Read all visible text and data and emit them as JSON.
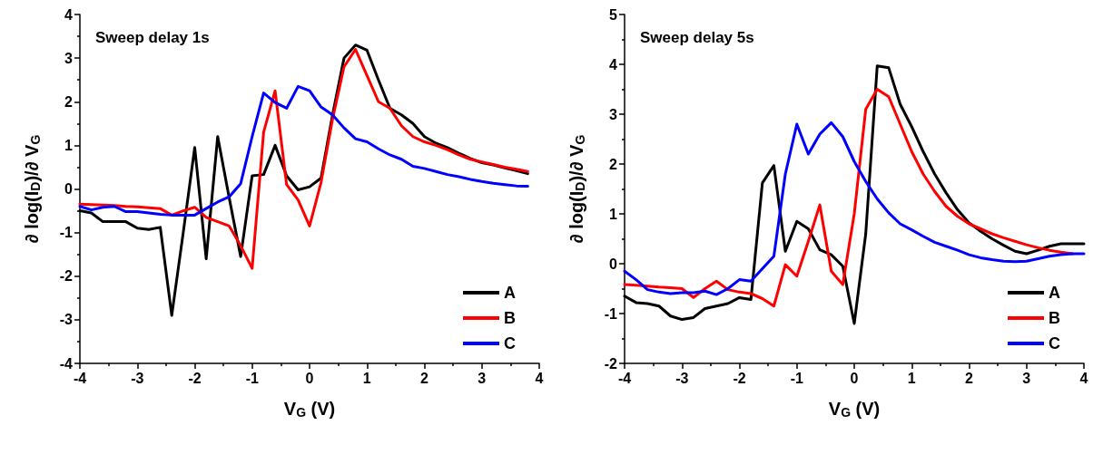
{
  "chart_data": [
    {
      "type": "line",
      "title": "Sweep delay 1s",
      "xlabel": "V$_{G}$ (V)",
      "ylabel": "∂ log(I$_{D}$)/∂ V$_{G}$",
      "x": [
        -4,
        -3.8,
        -3.6,
        -3.4,
        -3.2,
        -3,
        -2.8,
        -2.6,
        -2.4,
        -2.2,
        -2,
        -1.8,
        -1.6,
        -1.4,
        -1.2,
        -1,
        -0.8,
        -0.6,
        -0.4,
        -0.2,
        0,
        0.2,
        0.4,
        0.6,
        0.8,
        1,
        1.2,
        1.4,
        1.6,
        1.8,
        2,
        2.2,
        2.4,
        2.6,
        2.8,
        3,
        3.2,
        3.4,
        3.6,
        3.8
      ],
      "series": [
        {
          "name": "A",
          "color": "#000000",
          "values": [
            -0.5,
            -0.55,
            -0.75,
            -0.75,
            -0.75,
            -0.9,
            -0.93,
            -0.88,
            -2.9,
            -1.0,
            0.95,
            -1.6,
            1.2,
            -0.2,
            -1.55,
            0.3,
            0.33,
            1.0,
            0.3,
            -0.02,
            0.05,
            0.25,
            1.7,
            3.0,
            3.3,
            3.18,
            2.5,
            1.85,
            1.7,
            1.5,
            1.2,
            1.05,
            0.95,
            0.82,
            0.7,
            0.6,
            0.55,
            0.48,
            0.42,
            0.35
          ]
        },
        {
          "name": "B",
          "color": "#ff0000",
          "values": [
            -0.35,
            -0.36,
            -0.37,
            -0.38,
            -0.4,
            -0.41,
            -0.43,
            -0.45,
            -0.6,
            -0.5,
            -0.42,
            -0.65,
            -0.75,
            -0.85,
            -1.3,
            -1.82,
            1.3,
            2.25,
            0.1,
            -0.25,
            -0.85,
            0.15,
            1.6,
            2.8,
            3.2,
            2.6,
            2.0,
            1.85,
            1.45,
            1.2,
            1.08,
            1.0,
            0.9,
            0.78,
            0.68,
            0.62,
            0.56,
            0.5,
            0.45,
            0.4
          ]
        },
        {
          "name": "C",
          "color": "#0000ff",
          "values": [
            -0.4,
            -0.48,
            -0.42,
            -0.4,
            -0.52,
            -0.52,
            -0.55,
            -0.58,
            -0.6,
            -0.6,
            -0.6,
            -0.45,
            -0.3,
            -0.18,
            0.12,
            1.2,
            2.2,
            1.98,
            1.85,
            2.35,
            2.25,
            1.88,
            1.7,
            1.4,
            1.15,
            1.08,
            0.92,
            0.78,
            0.68,
            0.52,
            0.47,
            0.4,
            0.33,
            0.28,
            0.22,
            0.17,
            0.13,
            0.1,
            0.07,
            0.06
          ]
        }
      ],
      "xlim": [
        -4,
        4
      ],
      "xticks": [
        -4,
        -3,
        -2,
        -1,
        0,
        1,
        2,
        3,
        4
      ],
      "ylim": [
        -4,
        4
      ],
      "yticks": [
        -4,
        -3,
        -2,
        -1,
        0,
        1,
        2,
        3,
        4
      ],
      "legend": "bottom right"
    },
    {
      "type": "line",
      "title": "Sweep delay 5s",
      "xlabel": "V$_{G}$ (V)",
      "ylabel": "∂ log(I$_{D}$)/∂ V$_{G}$",
      "x": [
        -4,
        -3.8,
        -3.6,
        -3.4,
        -3.2,
        -3,
        -2.8,
        -2.6,
        -2.4,
        -2.2,
        -2,
        -1.8,
        -1.6,
        -1.4,
        -1.2,
        -1,
        -0.8,
        -0.6,
        -0.4,
        -0.2,
        0,
        0.2,
        0.4,
        0.6,
        0.8,
        1,
        1.2,
        1.4,
        1.6,
        1.8,
        2,
        2.2,
        2.4,
        2.6,
        2.8,
        3,
        3.2,
        3.4,
        3.6,
        3.8,
        4
      ],
      "series": [
        {
          "name": "A",
          "color": "#000000",
          "values": [
            -0.65,
            -0.78,
            -0.8,
            -0.85,
            -1.05,
            -1.12,
            -1.08,
            -0.9,
            -0.85,
            -0.8,
            -0.68,
            -0.72,
            1.62,
            1.97,
            0.25,
            0.85,
            0.7,
            0.28,
            0.18,
            -0.05,
            -1.2,
            0.6,
            3.97,
            3.93,
            3.2,
            2.75,
            2.25,
            1.8,
            1.42,
            1.08,
            0.82,
            0.65,
            0.5,
            0.37,
            0.25,
            0.2,
            0.27,
            0.35,
            0.4,
            0.4,
            0.4
          ]
        },
        {
          "name": "B",
          "color": "#ff0000",
          "values": [
            -0.42,
            -0.43,
            -0.45,
            -0.47,
            -0.48,
            -0.5,
            -0.68,
            -0.5,
            -0.35,
            -0.52,
            -0.57,
            -0.6,
            -0.7,
            -0.85,
            -0.02,
            -0.25,
            0.45,
            1.18,
            -0.15,
            -0.42,
            1.0,
            3.1,
            3.5,
            3.35,
            2.8,
            2.25,
            1.8,
            1.45,
            1.15,
            0.95,
            0.8,
            0.7,
            0.6,
            0.52,
            0.45,
            0.38,
            0.32,
            0.27,
            0.23,
            0.2,
            null
          ]
        },
        {
          "name": "C",
          "color": "#0000ff",
          "values": [
            -0.15,
            -0.32,
            -0.52,
            -0.57,
            -0.6,
            -0.58,
            -0.58,
            -0.55,
            -0.62,
            -0.5,
            -0.32,
            -0.35,
            -0.1,
            0.15,
            1.8,
            2.8,
            2.2,
            2.6,
            2.83,
            2.55,
            2.05,
            1.65,
            1.3,
            1.02,
            0.8,
            0.68,
            0.55,
            0.43,
            0.35,
            0.27,
            0.18,
            0.12,
            0.08,
            0.05,
            0.04,
            0.05,
            0.1,
            0.15,
            0.18,
            0.2,
            0.2
          ]
        }
      ],
      "xlim": [
        -4,
        4
      ],
      "xticks": [
        -4,
        -3,
        -2,
        -1,
        0,
        1,
        2,
        3,
        4
      ],
      "ylim": [
        -2,
        5
      ],
      "yticks": [
        -2,
        -1,
        0,
        1,
        2,
        3,
        4,
        5
      ],
      "legend": "bottom right"
    }
  ]
}
